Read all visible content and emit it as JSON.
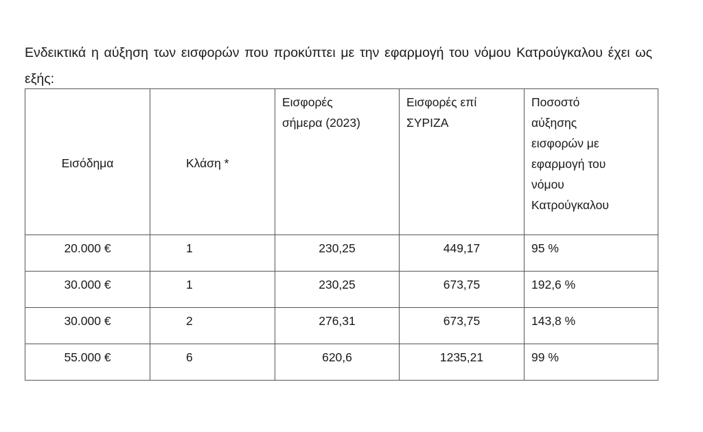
{
  "intro": "Ενδεικτικά η αύξηση των εισφορών που προκύπτει με την εφαρμογή του νόμου Κατρούγκαλου έχει ως εξής:",
  "table": {
    "headers": [
      "Εισόδημα",
      "Κλάση *",
      "Εισφορές\nσήμερα (2023)",
      "Εισφορές επί\nΣΥΡΙΖΑ",
      "Ποσοστό\nαύξησης\nεισφορών με\nεφαρμογή του\nνόμου\nΚατρούγκαλου"
    ],
    "rows": [
      [
        "20.000 €",
        "1",
        "230,25",
        "449,17",
        "95 %"
      ],
      [
        "30.000 €",
        "1",
        "230,25",
        "673,75",
        "192,6 %"
      ],
      [
        "30.000 €",
        "2",
        "276,31",
        "673,75",
        "143,8 %"
      ],
      [
        "55.000 €",
        "6",
        "620,6",
        "1235,21",
        "99 %"
      ]
    ]
  }
}
